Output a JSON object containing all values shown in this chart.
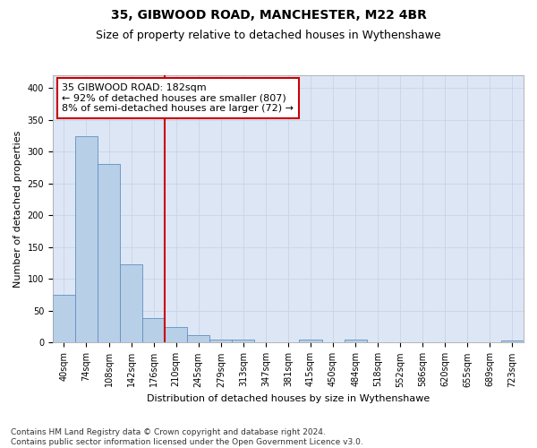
{
  "title_line1": "35, GIBWOOD ROAD, MANCHESTER, M22 4BR",
  "title_line2": "Size of property relative to detached houses in Wythenshawe",
  "xlabel": "Distribution of detached houses by size in Wythenshawe",
  "ylabel": "Number of detached properties",
  "footnote": "Contains HM Land Registry data © Crown copyright and database right 2024.\nContains public sector information licensed under the Open Government Licence v3.0.",
  "bin_labels": [
    "40sqm",
    "74sqm",
    "108sqm",
    "142sqm",
    "176sqm",
    "210sqm",
    "245sqm",
    "279sqm",
    "313sqm",
    "347sqm",
    "381sqm",
    "415sqm",
    "450sqm",
    "484sqm",
    "518sqm",
    "552sqm",
    "586sqm",
    "620sqm",
    "655sqm",
    "689sqm",
    "723sqm"
  ],
  "bar_values": [
    75,
    325,
    281,
    123,
    39,
    24,
    12,
    5,
    5,
    0,
    0,
    5,
    0,
    5,
    0,
    0,
    0,
    0,
    0,
    0,
    3
  ],
  "bar_color": "#b8cfe8",
  "bar_edge_color": "#6090c0",
  "highlight_bin_index": 4,
  "highlight_color": "#cc0000",
  "annotation_line1": "35 GIBWOOD ROAD: 182sqm",
  "annotation_line2": "← 92% of detached houses are smaller (807)",
  "annotation_line3": "8% of semi-detached houses are larger (72) →",
  "annotation_box_color": "#cc0000",
  "ylim": [
    0,
    420
  ],
  "yticks": [
    0,
    50,
    100,
    150,
    200,
    250,
    300,
    350,
    400
  ],
  "grid_color": "#c8d4e8",
  "bg_color": "#dce6f5",
  "title_fontsize": 10,
  "subtitle_fontsize": 9,
  "axis_label_fontsize": 8,
  "tick_fontsize": 7,
  "annotation_fontsize": 8,
  "footnote_fontsize": 6.5
}
